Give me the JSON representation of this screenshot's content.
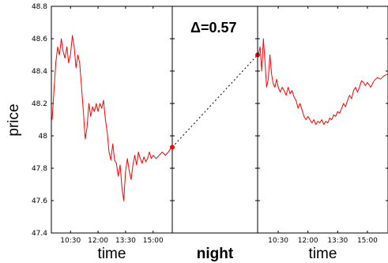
{
  "chart_data": {
    "type": "line",
    "ylabel": "price",
    "ylim": [
      47.4,
      48.8
    ],
    "yticks": [
      47.4,
      47.6,
      47.8,
      48,
      48.2,
      48.4,
      48.6,
      48.8
    ],
    "ytick_labels": [
      "47.4",
      "47.6",
      "47.8",
      "48",
      "48.2",
      "48.4",
      "48.6",
      "48.8"
    ],
    "annotation": "Δ=0.57",
    "panels": [
      {
        "name": "day1",
        "xlabel": "time",
        "xlim": [
          "09:30",
          "16:00"
        ],
        "xticks": [
          "10:30",
          "12:00",
          "13:30",
          "15:00"
        ],
        "series": [
          {
            "color": "#ff0000",
            "points": [
              [
                "09:30",
                48.1
              ],
              [
                "09:36",
                48.28
              ],
              [
                "09:42",
                48.45
              ],
              [
                "09:48",
                48.55
              ],
              [
                "09:54",
                48.5
              ],
              [
                "10:00",
                48.6
              ],
              [
                "10:06",
                48.52
              ],
              [
                "10:12",
                48.48
              ],
              [
                "10:18",
                48.55
              ],
              [
                "10:24",
                48.45
              ],
              [
                "10:30",
                48.5
              ],
              [
                "10:36",
                48.62
              ],
              [
                "10:42",
                48.55
              ],
              [
                "10:48",
                48.42
              ],
              [
                "10:54",
                48.5
              ],
              [
                "11:00",
                48.45
              ],
              [
                "11:06",
                48.3
              ],
              [
                "11:12",
                48.15
              ],
              [
                "11:18",
                47.98
              ],
              [
                "11:24",
                48.05
              ],
              [
                "11:30",
                48.2
              ],
              [
                "11:36",
                48.12
              ],
              [
                "11:42",
                48.18
              ],
              [
                "11:48",
                48.15
              ],
              [
                "11:54",
                48.2
              ],
              [
                "12:00",
                48.15
              ],
              [
                "12:06",
                48.2
              ],
              [
                "12:12",
                48.17
              ],
              [
                "12:18",
                48.22
              ],
              [
                "12:24",
                48.1
              ],
              [
                "12:30",
                48.02
              ],
              [
                "12:36",
                47.9
              ],
              [
                "12:42",
                47.85
              ],
              [
                "12:48",
                47.95
              ],
              [
                "12:54",
                47.85
              ],
              [
                "13:00",
                47.83
              ],
              [
                "13:06",
                47.75
              ],
              [
                "13:12",
                47.82
              ],
              [
                "13:18",
                47.68
              ],
              [
                "13:24",
                47.6
              ],
              [
                "13:30",
                47.78
              ],
              [
                "13:36",
                47.86
              ],
              [
                "13:42",
                47.78
              ],
              [
                "13:48",
                47.73
              ],
              [
                "13:54",
                47.82
              ],
              [
                "14:00",
                47.88
              ],
              [
                "14:06",
                47.82
              ],
              [
                "14:12",
                47.9
              ],
              [
                "14:18",
                47.86
              ],
              [
                "14:24",
                47.83
              ],
              [
                "14:30",
                47.87
              ],
              [
                "14:36",
                47.84
              ],
              [
                "14:42",
                47.86
              ],
              [
                "14:48",
                47.9
              ],
              [
                "14:54",
                47.86
              ],
              [
                "15:00",
                47.88
              ],
              [
                "15:10",
                47.86
              ],
              [
                "15:20",
                47.88
              ],
              [
                "15:30",
                47.9
              ],
              [
                "15:40",
                47.88
              ],
              [
                "15:50",
                47.9
              ],
              [
                "16:00",
                47.93
              ]
            ]
          }
        ]
      },
      {
        "name": "overnight",
        "xlabel": "night",
        "connector": {
          "from": 47.93,
          "to": 48.5,
          "style": "dotted"
        }
      },
      {
        "name": "day2",
        "xlabel": "time",
        "xlim": [
          "09:30",
          "16:00"
        ],
        "xticks": [
          "10:30",
          "12:00",
          "13:30",
          "15:00"
        ],
        "series": [
          {
            "color": "#ff0000",
            "points": [
              [
                "09:30",
                48.5
              ],
              [
                "09:35",
                48.55
              ],
              [
                "09:40",
                48.4
              ],
              [
                "09:45",
                48.6
              ],
              [
                "09:50",
                48.45
              ],
              [
                "09:55",
                48.3
              ],
              [
                "10:00",
                48.35
              ],
              [
                "10:05",
                48.5
              ],
              [
                "10:10",
                48.38
              ],
              [
                "10:15",
                48.32
              ],
              [
                "10:20",
                48.3
              ],
              [
                "10:25",
                48.35
              ],
              [
                "10:30",
                48.3
              ],
              [
                "10:36",
                48.27
              ],
              [
                "10:42",
                48.3
              ],
              [
                "10:48",
                48.28
              ],
              [
                "10:54",
                48.25
              ],
              [
                "11:00",
                48.3
              ],
              [
                "11:06",
                48.26
              ],
              [
                "11:12",
                48.28
              ],
              [
                "11:18",
                48.24
              ],
              [
                "11:24",
                48.22
              ],
              [
                "11:30",
                48.17
              ],
              [
                "11:36",
                48.2
              ],
              [
                "11:42",
                48.16
              ],
              [
                "11:48",
                48.12
              ],
              [
                "11:54",
                48.1
              ],
              [
                "12:00",
                48.12
              ],
              [
                "12:06",
                48.1
              ],
              [
                "12:12",
                48.08
              ],
              [
                "12:18",
                48.1
              ],
              [
                "12:24",
                48.07
              ],
              [
                "12:30",
                48.09
              ],
              [
                "12:36",
                48.08
              ],
              [
                "12:42",
                48.1
              ],
              [
                "12:48",
                48.07
              ],
              [
                "12:54",
                48.09
              ],
              [
                "13:00",
                48.08
              ],
              [
                "13:06",
                48.11
              ],
              [
                "13:12",
                48.1
              ],
              [
                "13:18",
                48.13
              ],
              [
                "13:24",
                48.12
              ],
              [
                "13:30",
                48.15
              ],
              [
                "13:36",
                48.14
              ],
              [
                "13:42",
                48.17
              ],
              [
                "13:48",
                48.2
              ],
              [
                "13:54",
                48.18
              ],
              [
                "14:00",
                48.22
              ],
              [
                "14:06",
                48.25
              ],
              [
                "14:12",
                48.23
              ],
              [
                "14:18",
                48.28
              ],
              [
                "14:24",
                48.3
              ],
              [
                "14:30",
                48.27
              ],
              [
                "14:36",
                48.3
              ],
              [
                "14:42",
                48.34
              ],
              [
                "14:48",
                48.33
              ],
              [
                "14:54",
                48.31
              ],
              [
                "15:00",
                48.33
              ],
              [
                "15:10",
                48.3
              ],
              [
                "15:20",
                48.34
              ],
              [
                "15:30",
                48.36
              ],
              [
                "15:40",
                48.35
              ],
              [
                "15:50",
                48.37
              ],
              [
                "16:00",
                48.38
              ]
            ]
          }
        ]
      }
    ]
  }
}
